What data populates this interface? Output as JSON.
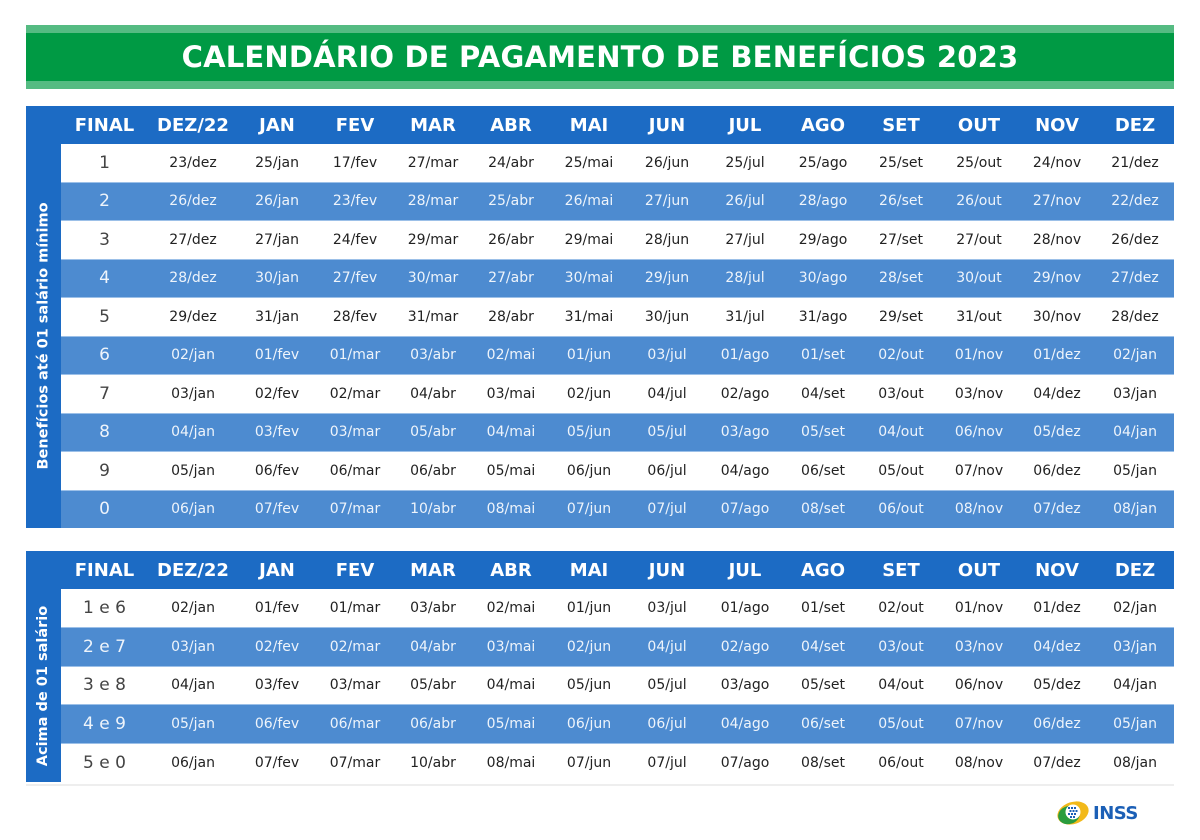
{
  "title": "CALENDÁRIO DE PAGAMENTO DE BENEFÍCIOS 2023",
  "colors": {
    "banner_green": "#009a44",
    "banner_stripe": "#55bb82",
    "header_blue": "#1c6bc4",
    "row_blue": "#4d8bd0",
    "logo_blue": "#1b5fb6"
  },
  "columns": [
    "FINAL",
    "DEZ/22",
    "JAN",
    "FEV",
    "MAR",
    "ABR",
    "MAI",
    "JUN",
    "JUL",
    "AGO",
    "SET",
    "OUT",
    "NOV",
    "DEZ"
  ],
  "section1": {
    "side_label": "Benefícios até 01 salário mínimo",
    "rows": [
      [
        "1",
        "23/dez",
        "25/jan",
        "17/fev",
        "27/mar",
        "24/abr",
        "25/mai",
        "26/jun",
        "25/jul",
        "25/ago",
        "25/set",
        "25/out",
        "24/nov",
        "21/dez"
      ],
      [
        "2",
        "26/dez",
        "26/jan",
        "23/fev",
        "28/mar",
        "25/abr",
        "26/mai",
        "27/jun",
        "26/jul",
        "28/ago",
        "26/set",
        "26/out",
        "27/nov",
        "22/dez"
      ],
      [
        "3",
        "27/dez",
        "27/jan",
        "24/fev",
        "29/mar",
        "26/abr",
        "29/mai",
        "28/jun",
        "27/jul",
        "29/ago",
        "27/set",
        "27/out",
        "28/nov",
        "26/dez"
      ],
      [
        "4",
        "28/dez",
        "30/jan",
        "27/fev",
        "30/mar",
        "27/abr",
        "30/mai",
        "29/jun",
        "28/jul",
        "30/ago",
        "28/set",
        "30/out",
        "29/nov",
        "27/dez"
      ],
      [
        "5",
        "29/dez",
        "31/jan",
        "28/fev",
        "31/mar",
        "28/abr",
        "31/mai",
        "30/jun",
        "31/jul",
        "31/ago",
        "29/set",
        "31/out",
        "30/nov",
        "28/dez"
      ],
      [
        "6",
        "02/jan",
        "01/fev",
        "01/mar",
        "03/abr",
        "02/mai",
        "01/jun",
        "03/jul",
        "01/ago",
        "01/set",
        "02/out",
        "01/nov",
        "01/dez",
        "02/jan"
      ],
      [
        "7",
        "03/jan",
        "02/fev",
        "02/mar",
        "04/abr",
        "03/mai",
        "02/jun",
        "04/jul",
        "02/ago",
        "04/set",
        "03/out",
        "03/nov",
        "04/dez",
        "03/jan"
      ],
      [
        "8",
        "04/jan",
        "03/fev",
        "03/mar",
        "05/abr",
        "04/mai",
        "05/jun",
        "05/jul",
        "03/ago",
        "05/set",
        "04/out",
        "06/nov",
        "05/dez",
        "04/jan"
      ],
      [
        "9",
        "05/jan",
        "06/fev",
        "06/mar",
        "06/abr",
        "05/mai",
        "06/jun",
        "06/jul",
        "04/ago",
        "06/set",
        "05/out",
        "07/nov",
        "06/dez",
        "05/jan"
      ],
      [
        "0",
        "06/jan",
        "07/fev",
        "07/mar",
        "10/abr",
        "08/mai",
        "07/jun",
        "07/jul",
        "07/ago",
        "08/set",
        "06/out",
        "08/nov",
        "07/dez",
        "08/jan"
      ]
    ]
  },
  "section2": {
    "side_label": "Acima de 01 salário",
    "rows": [
      [
        "1 e 6",
        "02/jan",
        "01/fev",
        "01/mar",
        "03/abr",
        "02/mai",
        "01/jun",
        "03/jul",
        "01/ago",
        "01/set",
        "02/out",
        "01/nov",
        "01/dez",
        "02/jan"
      ],
      [
        "2 e 7",
        "03/jan",
        "02/fev",
        "02/mar",
        "04/abr",
        "03/mai",
        "02/jun",
        "04/jul",
        "02/ago",
        "04/set",
        "03/out",
        "03/nov",
        "04/dez",
        "03/jan"
      ],
      [
        "3 e 8",
        "04/jan",
        "03/fev",
        "03/mar",
        "05/abr",
        "04/mai",
        "05/jun",
        "05/jul",
        "03/ago",
        "05/set",
        "04/out",
        "06/nov",
        "05/dez",
        "04/jan"
      ],
      [
        "4 e 9",
        "05/jan",
        "06/fev",
        "06/mar",
        "06/abr",
        "05/mai",
        "06/jun",
        "06/jul",
        "04/ago",
        "06/set",
        "05/out",
        "07/nov",
        "06/dez",
        "05/jan"
      ],
      [
        "5 e 0",
        "06/jan",
        "07/fev",
        "07/mar",
        "10/abr",
        "08/mai",
        "07/jun",
        "07/jul",
        "07/ago",
        "08/set",
        "06/out",
        "08/nov",
        "07/dez",
        "08/jan"
      ]
    ]
  },
  "logo": {
    "text": "INSS",
    "icon": "inss-logo-icon"
  }
}
